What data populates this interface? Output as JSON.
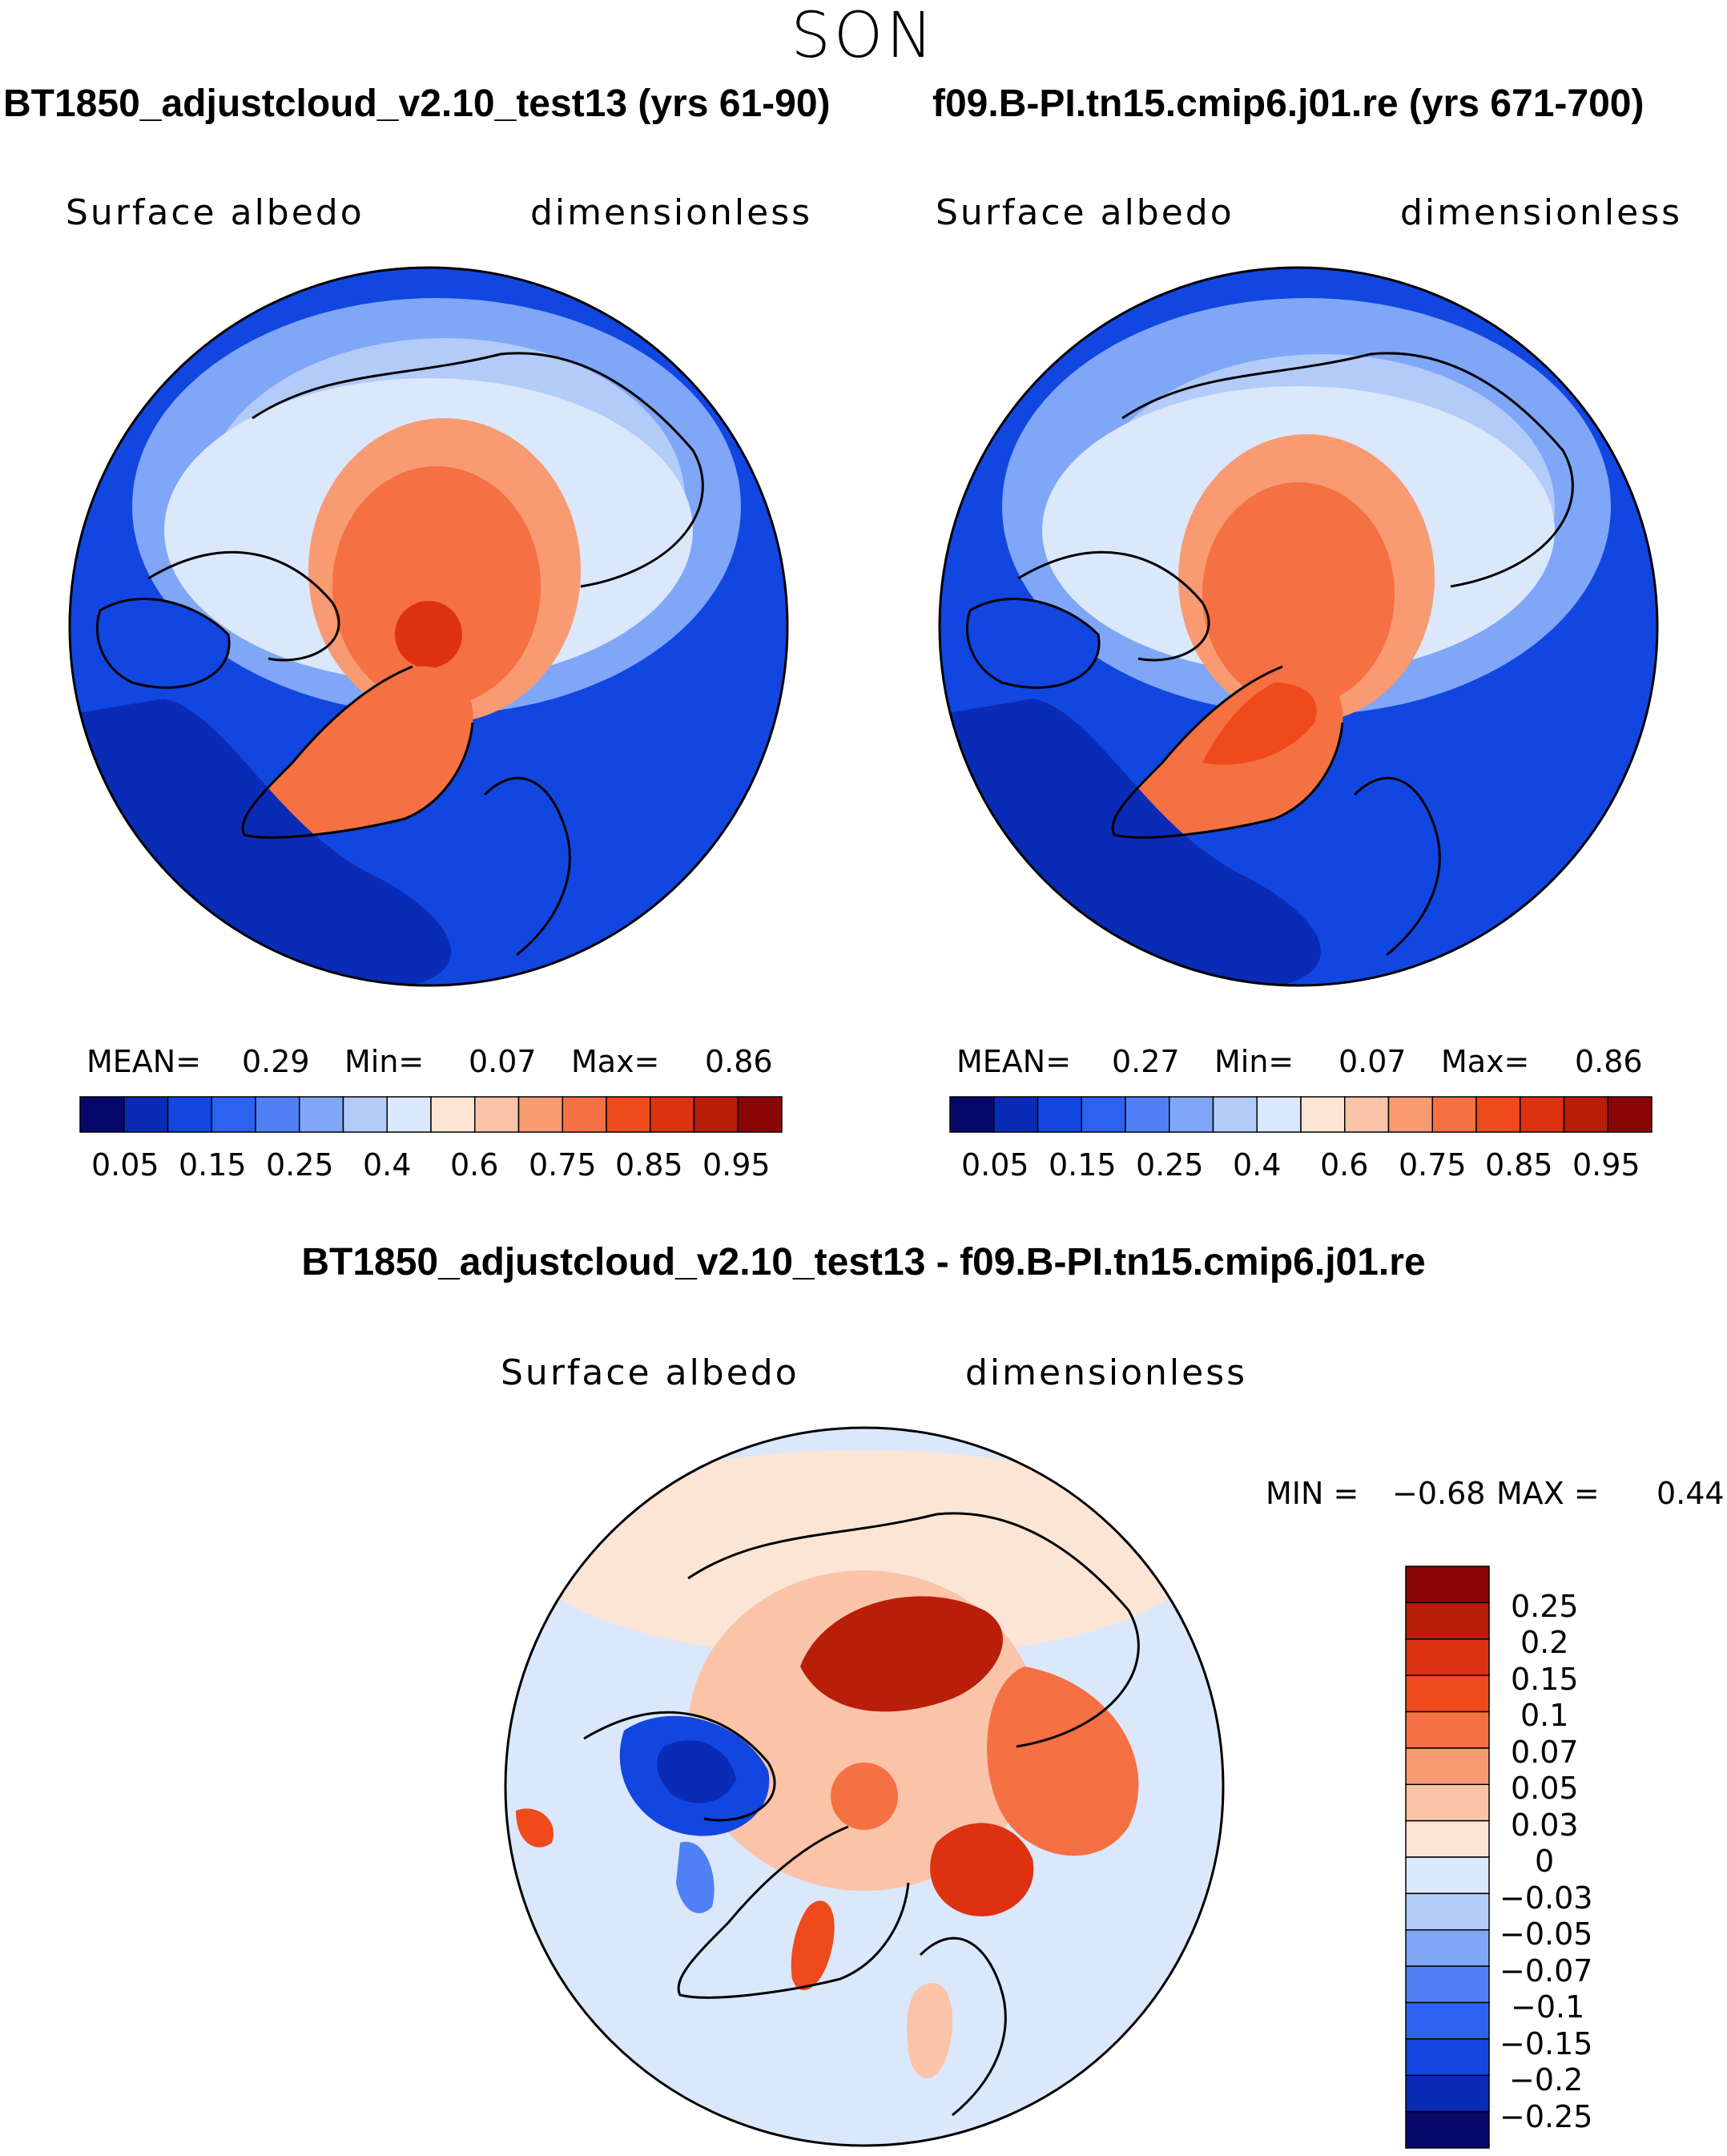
{
  "title": "SON",
  "colors": {
    "land_outline": "#000000",
    "abs_palette": [
      "#08086b",
      "#0a2bb5",
      "#1246e0",
      "#2b62f0",
      "#4f80f5",
      "#7fa6f7",
      "#b3cbf8",
      "#dbe7fb",
      "#fde5d5",
      "#fbc4a8",
      "#f89a72",
      "#f57042",
      "#ef4a1c",
      "#dd3211",
      "#b81e0a",
      "#8a0606"
    ],
    "diff_palette": [
      "#08086b",
      "#0a2bb5",
      "#1246e0",
      "#2b62f0",
      "#4f80f5",
      "#7fa6f7",
      "#b3cbf8",
      "#dbe7fb",
      "#fde5d5",
      "#fbc4a8",
      "#f89a72",
      "#f57042",
      "#ef4a1c",
      "#dd3211",
      "#b81e0a",
      "#8a0606"
    ]
  },
  "chart_data": [
    {
      "type": "heatmap",
      "title": "BT1850_adjustcloud_v2.10_test13 (yrs 61-90)",
      "variable": "Surface albedo",
      "units": "dimensionless",
      "mean_label": "MEAN=",
      "mean": "0.29",
      "min_label": "Min=",
      "min": "0.07",
      "max_label": "Max=",
      "max": "0.86",
      "colorbar_ticks": [
        "0.05",
        "0.15",
        "0.25",
        "0.4",
        "0.6",
        "0.75",
        "0.85",
        "0.95"
      ]
    },
    {
      "type": "heatmap",
      "title": "f09.B-PI.tn15.cmip6.j01.re (yrs 671-700)",
      "variable": "Surface albedo",
      "units": "dimensionless",
      "mean_label": "MEAN=",
      "mean": "0.27",
      "min_label": "Min=",
      "min": "0.07",
      "max_label": "Max=",
      "max": "0.86",
      "colorbar_ticks": [
        "0.05",
        "0.15",
        "0.25",
        "0.4",
        "0.6",
        "0.75",
        "0.85",
        "0.95"
      ]
    },
    {
      "type": "heatmap",
      "title": "BT1850_adjustcloud_v2.10_test13 - f09.B-PI.tn15.cmip6.j01.re",
      "variable": "Surface albedo",
      "units": "dimensionless",
      "min_label": "MIN =",
      "min": "−0.68",
      "max_label": "MAX =",
      "max": "0.44",
      "colorbar_ticks": [
        "0.25",
        "0.2",
        "0.15",
        "0.1",
        "0.07",
        "0.05",
        "0.03",
        "0",
        "−0.03",
        "−0.05",
        "−0.07",
        "−0.1",
        "−0.15",
        "−0.2",
        "−0.25"
      ]
    }
  ]
}
